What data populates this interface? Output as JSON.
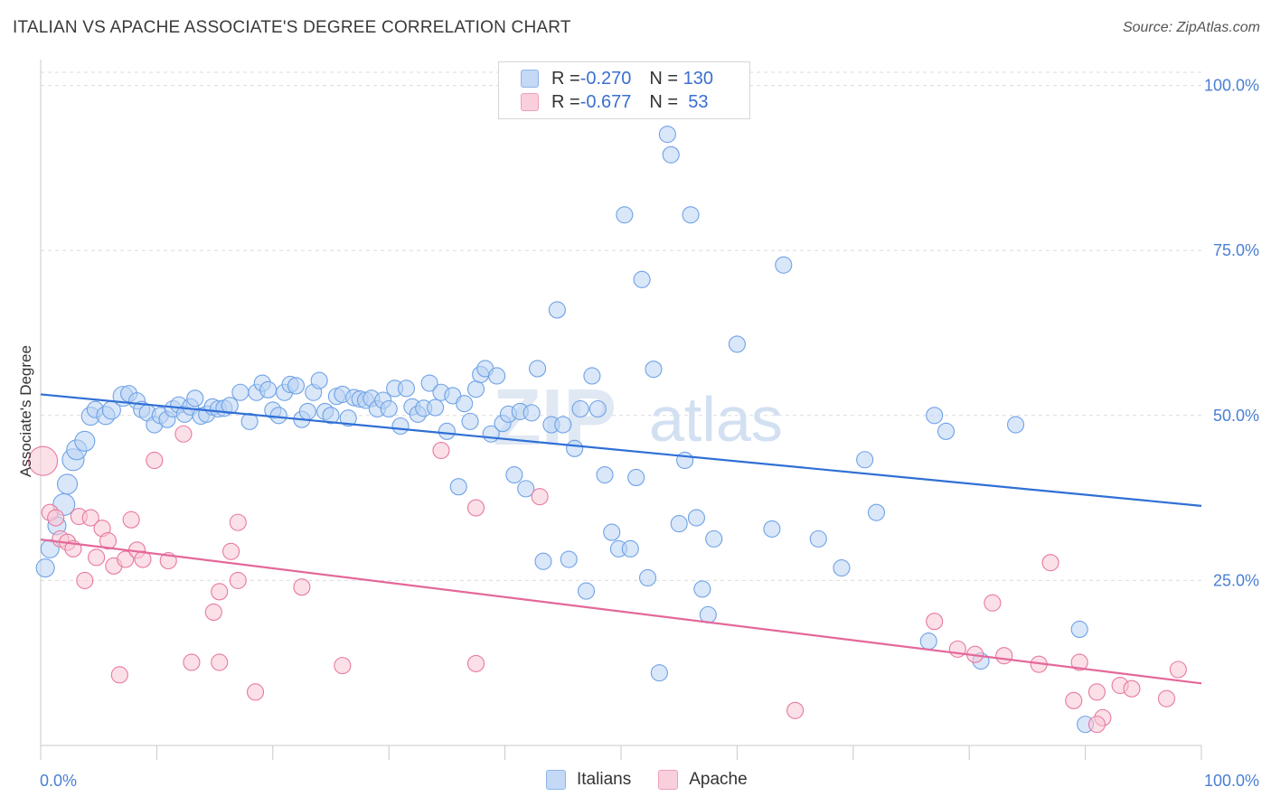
{
  "header": {
    "title": "ITALIAN VS APACHE ASSOCIATE'S DEGREE CORRELATION CHART",
    "source": "Source: ZipAtlas.com"
  },
  "watermark": {
    "zip": "ZIP",
    "atlas": "atlas"
  },
  "legend": {
    "rows": [
      {
        "r_label": "R = ",
        "r_value": "-0.270",
        "n_label": "N = ",
        "n_value": "130",
        "color": "#9ec3f0"
      },
      {
        "r_label": "R = ",
        "r_value": "-0.677",
        "n_label": "N = ",
        "n_value": " 53",
        "color": "#f6b8cb"
      }
    ]
  },
  "bottom_legend": [
    {
      "label": "Italians",
      "color": "#9ec3f0"
    },
    {
      "label": "Apache",
      "color": "#f6b8cb"
    }
  ],
  "chart_data": {
    "type": "scatter",
    "title": "ITALIAN VS APACHE ASSOCIATE'S DEGREE CORRELATION CHART",
    "xlabel": "",
    "ylabel": "Associate's Degree",
    "xlim": [
      0,
      100
    ],
    "ylim": [
      0,
      102
    ],
    "x_tick_labels": [
      "0.0%",
      "100.0%"
    ],
    "y_ticks": [
      25,
      50,
      75,
      100
    ],
    "y_tick_labels": [
      "25.0%",
      "50.0%",
      "75.0%",
      "100.0%"
    ],
    "grid": "horizontal dashed",
    "legend_placement": "top-center",
    "series": [
      {
        "name": "Italians",
        "color": "#6fa2e6",
        "fill": "#b9d3f4",
        "trend": [
          [
            0,
            53.2
          ],
          [
            100,
            36.3
          ]
        ],
        "points": [
          [
            0.4,
            26.9,
            10
          ],
          [
            0.8,
            29.8,
            10
          ],
          [
            1.4,
            33.3,
            10
          ],
          [
            2.0,
            36.5,
            12
          ],
          [
            2.3,
            39.6,
            11
          ],
          [
            2.8,
            43.3,
            12
          ],
          [
            3.1,
            44.8,
            11
          ],
          [
            3.8,
            46.1,
            11
          ],
          [
            4.3,
            49.9,
            10
          ],
          [
            4.7,
            50.9,
            9
          ],
          [
            5.6,
            50.0,
            10
          ],
          [
            6.1,
            50.8,
            10
          ],
          [
            7.1,
            52.9,
            11
          ],
          [
            7.6,
            53.3,
            9
          ],
          [
            8.3,
            52.2,
            9
          ],
          [
            8.7,
            50.9,
            9
          ],
          [
            9.2,
            50.4,
            9
          ],
          [
            9.8,
            48.6,
            9
          ],
          [
            10.3,
            50.0,
            9
          ],
          [
            10.9,
            49.4,
            9
          ],
          [
            11.4,
            51.0,
            9
          ],
          [
            11.9,
            51.6,
            9
          ],
          [
            12.4,
            50.2,
            9
          ],
          [
            12.9,
            51.3,
            9
          ],
          [
            13.3,
            52.6,
            9
          ],
          [
            13.8,
            49.9,
            9
          ],
          [
            14.3,
            50.2,
            9
          ],
          [
            14.8,
            51.3,
            9
          ],
          [
            15.3,
            51.0,
            9
          ],
          [
            15.8,
            51.1,
            9
          ],
          [
            16.3,
            51.5,
            9
          ],
          [
            17.2,
            53.5,
            9
          ],
          [
            18.0,
            49.1,
            9
          ],
          [
            18.6,
            53.5,
            9
          ],
          [
            19.1,
            54.9,
            9
          ],
          [
            19.6,
            53.9,
            9
          ],
          [
            20.0,
            50.8,
            9
          ],
          [
            20.5,
            50.0,
            9
          ],
          [
            21.0,
            53.5,
            9
          ],
          [
            21.5,
            54.7,
            9
          ],
          [
            22.0,
            54.5,
            9
          ],
          [
            22.5,
            49.4,
            9
          ],
          [
            23.0,
            50.6,
            9
          ],
          [
            23.5,
            53.5,
            9
          ],
          [
            24.0,
            55.3,
            9
          ],
          [
            24.5,
            50.6,
            9
          ],
          [
            25.0,
            50.0,
            9
          ],
          [
            25.5,
            52.9,
            9
          ],
          [
            26.0,
            53.2,
            9
          ],
          [
            26.5,
            49.6,
            9
          ],
          [
            27.0,
            52.7,
            9
          ],
          [
            27.5,
            52.5,
            9
          ],
          [
            28.0,
            52.3,
            9
          ],
          [
            28.5,
            52.6,
            9
          ],
          [
            29.0,
            51.0,
            9
          ],
          [
            29.5,
            52.3,
            9
          ],
          [
            30.0,
            51.0,
            9
          ],
          [
            30.5,
            54.1,
            9
          ],
          [
            31.0,
            48.4,
            9
          ],
          [
            31.5,
            54.1,
            9
          ],
          [
            32.0,
            51.3,
            9
          ],
          [
            32.5,
            50.2,
            9
          ],
          [
            33.0,
            51.1,
            9
          ],
          [
            33.5,
            54.9,
            9
          ],
          [
            34.0,
            51.2,
            9
          ],
          [
            34.5,
            53.5,
            9
          ],
          [
            35.0,
            47.6,
            9
          ],
          [
            35.5,
            53.0,
            9
          ],
          [
            36.0,
            39.2,
            9
          ],
          [
            36.5,
            51.8,
            9
          ],
          [
            37.0,
            49.1,
            9
          ],
          [
            37.5,
            54.0,
            9
          ],
          [
            37.9,
            56.2,
            9
          ],
          [
            38.3,
            57.1,
            9
          ],
          [
            38.8,
            47.2,
            9
          ],
          [
            39.3,
            56.0,
            9
          ],
          [
            39.8,
            48.8,
            9
          ],
          [
            40.3,
            50.2,
            9
          ],
          [
            40.8,
            41.0,
            9
          ],
          [
            41.3,
            50.6,
            9
          ],
          [
            41.8,
            38.9,
            9
          ],
          [
            42.3,
            50.4,
            9
          ],
          [
            42.8,
            57.1,
            9
          ],
          [
            43.3,
            27.9,
            9
          ],
          [
            44.0,
            48.6,
            9
          ],
          [
            44.5,
            66.0,
            9
          ],
          [
            45.0,
            48.6,
            9
          ],
          [
            45.5,
            28.2,
            9
          ],
          [
            46.0,
            45.0,
            9
          ],
          [
            46.5,
            51.0,
            9
          ],
          [
            47.0,
            23.4,
            9
          ],
          [
            47.5,
            56.0,
            9
          ],
          [
            48.0,
            51.0,
            9
          ],
          [
            48.6,
            41.0,
            9
          ],
          [
            49.2,
            32.3,
            9
          ],
          [
            49.8,
            29.8,
            9
          ],
          [
            50.3,
            80.4,
            9
          ],
          [
            50.8,
            29.8,
            9
          ],
          [
            51.3,
            40.6,
            9
          ],
          [
            51.8,
            70.6,
            9
          ],
          [
            52.3,
            25.4,
            9
          ],
          [
            52.8,
            57.0,
            9
          ],
          [
            53.3,
            11.0,
            9
          ],
          [
            54.0,
            92.6,
            9
          ],
          [
            54.3,
            89.5,
            9
          ],
          [
            55.0,
            33.6,
            9
          ],
          [
            55.5,
            43.2,
            9
          ],
          [
            56.0,
            80.4,
            9
          ],
          [
            56.5,
            34.5,
            9
          ],
          [
            57.0,
            23.7,
            9
          ],
          [
            57.5,
            19.8,
            9
          ],
          [
            58.0,
            31.3,
            9
          ],
          [
            60.0,
            60.8,
            9
          ],
          [
            63.0,
            32.8,
            9
          ],
          [
            64.0,
            72.8,
            9
          ],
          [
            67.0,
            31.3,
            9
          ],
          [
            69.0,
            26.9,
            9
          ],
          [
            71.0,
            43.3,
            9
          ],
          [
            72.0,
            35.3,
            9
          ],
          [
            76.5,
            15.8,
            9
          ],
          [
            77.0,
            50.0,
            9
          ],
          [
            78.0,
            47.6,
            9
          ],
          [
            81.0,
            12.8,
            9
          ],
          [
            84.0,
            48.6,
            9
          ],
          [
            89.5,
            17.6,
            9
          ],
          [
            90.0,
            3.2,
            9
          ]
        ]
      },
      {
        "name": "Apache",
        "color": "#e8799e",
        "fill": "#f8c6d6",
        "trend": [
          [
            0,
            31.2
          ],
          [
            100,
            9.4
          ]
        ],
        "points": [
          [
            0.2,
            43.1,
            16
          ],
          [
            0.8,
            35.3,
            9
          ],
          [
            1.3,
            34.5,
            9
          ],
          [
            1.7,
            31.3,
            9
          ],
          [
            2.3,
            30.8,
            9
          ],
          [
            2.8,
            29.8,
            9
          ],
          [
            3.3,
            34.7,
            9
          ],
          [
            3.8,
            25.0,
            9
          ],
          [
            4.3,
            34.5,
            9
          ],
          [
            4.8,
            28.5,
            9
          ],
          [
            5.3,
            32.9,
            9
          ],
          [
            5.8,
            31.0,
            9
          ],
          [
            6.3,
            27.2,
            9
          ],
          [
            6.8,
            10.7,
            9
          ],
          [
            7.3,
            28.2,
            9
          ],
          [
            7.8,
            34.2,
            9
          ],
          [
            8.3,
            29.6,
            9
          ],
          [
            8.8,
            28.2,
            9
          ],
          [
            9.8,
            43.2,
            9
          ],
          [
            11.0,
            28.0,
            9
          ],
          [
            12.3,
            47.2,
            9
          ],
          [
            13.0,
            12.6,
            9
          ],
          [
            14.9,
            20.2,
            9
          ],
          [
            15.4,
            23.3,
            9
          ],
          [
            15.4,
            12.6,
            9
          ],
          [
            16.4,
            29.4,
            9
          ],
          [
            17.0,
            33.8,
            9
          ],
          [
            17.0,
            25.0,
            9
          ],
          [
            18.5,
            8.1,
            9
          ],
          [
            22.5,
            24.0,
            9
          ],
          [
            26.0,
            12.1,
            9
          ],
          [
            34.5,
            44.7,
            9
          ],
          [
            37.5,
            36.0,
            9
          ],
          [
            37.5,
            12.4,
            9
          ],
          [
            43.0,
            37.7,
            9
          ],
          [
            65.0,
            5.3,
            9
          ],
          [
            77.0,
            18.8,
            9
          ],
          [
            79.0,
            14.6,
            9
          ],
          [
            80.5,
            13.8,
            9
          ],
          [
            82.0,
            21.6,
            9
          ],
          [
            83.0,
            13.6,
            9
          ],
          [
            86.0,
            12.3,
            9
          ],
          [
            87.0,
            27.7,
            9
          ],
          [
            89.0,
            6.8,
            9
          ],
          [
            89.5,
            12.6,
            9
          ],
          [
            91.0,
            8.1,
            9
          ],
          [
            91.5,
            4.2,
            9
          ],
          [
            91.0,
            3.2,
            9
          ],
          [
            93.0,
            9.1,
            9
          ],
          [
            94.0,
            8.6,
            9
          ],
          [
            97.0,
            7.1,
            9
          ],
          [
            98.0,
            11.5,
            9
          ]
        ]
      }
    ]
  }
}
